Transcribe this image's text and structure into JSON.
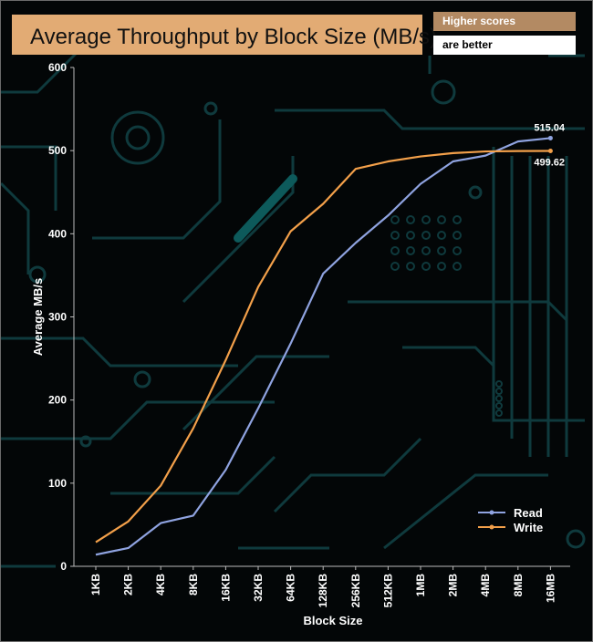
{
  "header": {
    "title": "Average Throughput by Block Size (MB/s)",
    "badge_top": "Higher scores",
    "badge_bottom": "are better"
  },
  "colors": {
    "title_bg": "#e2ab74",
    "badge_top_bg": "#b38a63",
    "read": "#8fa3e0",
    "write": "#f3a04a",
    "circuit": "#0f3a3d"
  },
  "chart_data": {
    "type": "line",
    "xlabel": "Block Size",
    "ylabel": "Average MB/s",
    "ylim": [
      0,
      600
    ],
    "yticks": [
      0,
      100,
      200,
      300,
      400,
      500,
      600
    ],
    "categories": [
      "1KB",
      "2KB",
      "4KB",
      "8KB",
      "16KB",
      "32KB",
      "64KB",
      "128KB",
      "256KB",
      "512KB",
      "1MB",
      "2MB",
      "4MB",
      "8MB",
      "16MB"
    ],
    "series": [
      {
        "name": "Read",
        "color": "#8fa3e0",
        "values": [
          14,
          22,
          52,
          61,
          116,
          190,
          268,
          352,
          389,
          422,
          460,
          487,
          494,
          511,
          515.04
        ],
        "end_label": "515.04"
      },
      {
        "name": "Write",
        "color": "#f3a04a",
        "values": [
          29,
          54,
          97,
          166,
          248,
          336,
          403,
          436,
          478,
          487,
          493,
          497,
          499,
          499.5,
          499.62
        ],
        "end_label": "499.62"
      }
    ],
    "grid": false,
    "legend": "bottom-right"
  }
}
